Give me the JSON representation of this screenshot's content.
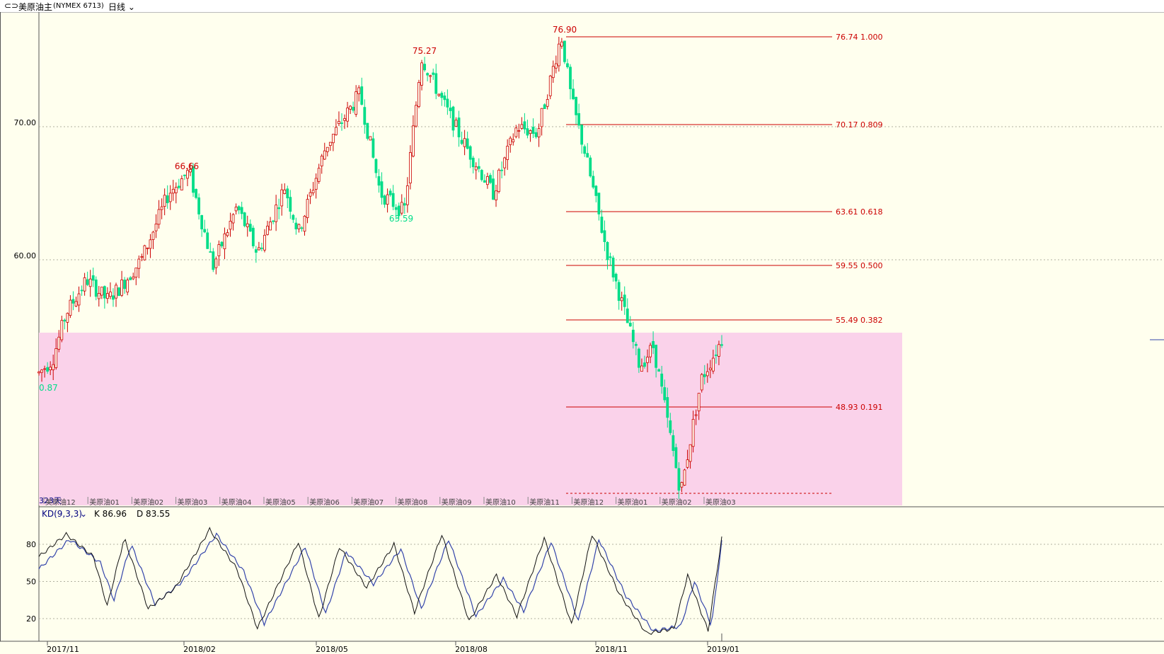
{
  "header": {
    "link_icon": "link-icon",
    "symbol": "美原油主",
    "code": "(NYMEX 6713)",
    "period": "日线",
    "period_icon": "chevron-down-icon"
  },
  "colors": {
    "background": "#ffffee",
    "up": "#cc0000",
    "down": "#00dd88",
    "fib_line": "#cc0000",
    "zone": "#fad2ea",
    "k_line": "#111111",
    "d_line": "#3344aa",
    "indicator_text": "#000080"
  },
  "price_axis": {
    "labels": [
      "70.00",
      "60.00"
    ],
    "values": [
      70,
      60
    ]
  },
  "annotations": {
    "high_labels": [
      "66.66",
      "75.27",
      "76.90"
    ],
    "low_labels": [
      "63.59"
    ],
    "left_low_label": "0.87"
  },
  "fibonacci": {
    "levels": [
      {
        "label": "76.74  1.000",
        "price": 76.74
      },
      {
        "label": "70.17  0.809",
        "price": 70.17
      },
      {
        "label": "63.61  0.618",
        "price": 63.61
      },
      {
        "label": "59.55  0.500",
        "price": 59.55
      },
      {
        "label": "55.49  0.382",
        "price": 55.49
      },
      {
        "label": "48.93  0.191",
        "price": 48.93
      }
    ]
  },
  "zone": {
    "days_label": "323天"
  },
  "contract_labels": [
    "美原油12",
    "美原油01",
    "美原油02",
    "美原油03",
    "美原油04",
    "美原油05",
    "美原油06",
    "美原油07",
    "美原油08",
    "美原油09",
    "美原油10",
    "美原油11",
    "美原油12",
    "美原油01",
    "美原油02",
    "美原油03"
  ],
  "indicator": {
    "name": "KD(9,3,3)",
    "dropdown_icon": "chevron-down-icon",
    "k_text": "K 86.96",
    "d_text": "D 83.55",
    "axis_labels": [
      "80",
      "50",
      "20"
    ],
    "axis_values": [
      80,
      50,
      20
    ]
  },
  "date_axis": [
    "2017/11",
    "2018/02",
    "2018/05",
    "2018/08",
    "2018/11",
    "2019/01"
  ],
  "chart_data": {
    "type": "candlestick",
    "ohlc_path": [
      [
        0.0,
        51.5
      ],
      [
        0.02,
        52.5
      ],
      [
        0.04,
        56.0
      ],
      [
        0.07,
        58.5
      ],
      [
        0.1,
        57.0
      ],
      [
        0.12,
        58.0
      ],
      [
        0.15,
        60.0
      ],
      [
        0.19,
        65.0
      ],
      [
        0.22,
        66.66
      ],
      [
        0.255,
        59.5
      ],
      [
        0.29,
        64.0
      ],
      [
        0.32,
        60.5
      ],
      [
        0.36,
        65.5
      ],
      [
        0.38,
        62.0
      ],
      [
        0.42,
        68.5
      ],
      [
        0.47,
        72.5
      ],
      [
        0.5,
        65.0
      ],
      [
        0.535,
        63.59
      ],
      [
        0.56,
        75.27
      ],
      [
        0.59,
        72.0
      ],
      [
        0.62,
        69.0
      ],
      [
        0.665,
        65.0
      ],
      [
        0.7,
        70.0
      ],
      [
        0.73,
        69.5
      ],
      [
        0.765,
        76.9
      ],
      [
        0.78,
        72.0
      ],
      [
        0.8,
        68.0
      ],
      [
        0.83,
        61.0
      ],
      [
        0.88,
        52.0
      ],
      [
        0.9,
        53.5
      ],
      [
        0.94,
        42.5
      ],
      [
        0.97,
        51.0
      ],
      [
        1.0,
        54.0
      ]
    ],
    "kd": {
      "k_path": [
        [
          0.0,
          70
        ],
        [
          0.04,
          88
        ],
        [
          0.08,
          70
        ],
        [
          0.1,
          30
        ],
        [
          0.125,
          85
        ],
        [
          0.16,
          28
        ],
        [
          0.2,
          45
        ],
        [
          0.25,
          92
        ],
        [
          0.29,
          60
        ],
        [
          0.32,
          12
        ],
        [
          0.38,
          82
        ],
        [
          0.41,
          20
        ],
        [
          0.44,
          78
        ],
        [
          0.48,
          45
        ],
        [
          0.52,
          80
        ],
        [
          0.55,
          25
        ],
        [
          0.59,
          88
        ],
        [
          0.63,
          18
        ],
        [
          0.67,
          55
        ],
        [
          0.7,
          22
        ],
        [
          0.74,
          85
        ],
        [
          0.78,
          15
        ],
        [
          0.81,
          88
        ],
        [
          0.85,
          40
        ],
        [
          0.89,
          8
        ],
        [
          0.93,
          12
        ],
        [
          0.95,
          55
        ],
        [
          0.98,
          10
        ],
        [
          1.0,
          85
        ]
      ],
      "d_path": [
        [
          0.0,
          60
        ],
        [
          0.045,
          84
        ],
        [
          0.09,
          65
        ],
        [
          0.11,
          35
        ],
        [
          0.135,
          80
        ],
        [
          0.17,
          32
        ],
        [
          0.21,
          50
        ],
        [
          0.26,
          88
        ],
        [
          0.3,
          58
        ],
        [
          0.33,
          16
        ],
        [
          0.39,
          78
        ],
        [
          0.42,
          24
        ],
        [
          0.45,
          74
        ],
        [
          0.49,
          48
        ],
        [
          0.53,
          76
        ],
        [
          0.56,
          28
        ],
        [
          0.6,
          84
        ],
        [
          0.64,
          22
        ],
        [
          0.68,
          52
        ],
        [
          0.71,
          26
        ],
        [
          0.75,
          82
        ],
        [
          0.79,
          18
        ],
        [
          0.82,
          84
        ],
        [
          0.86,
          38
        ],
        [
          0.9,
          10
        ],
        [
          0.94,
          14
        ],
        [
          0.96,
          50
        ],
        [
          0.985,
          14
        ],
        [
          1.0,
          82
        ]
      ]
    },
    "y_price_range": [
      40,
      78
    ],
    "y_kd_range": [
      0,
      100
    ]
  }
}
